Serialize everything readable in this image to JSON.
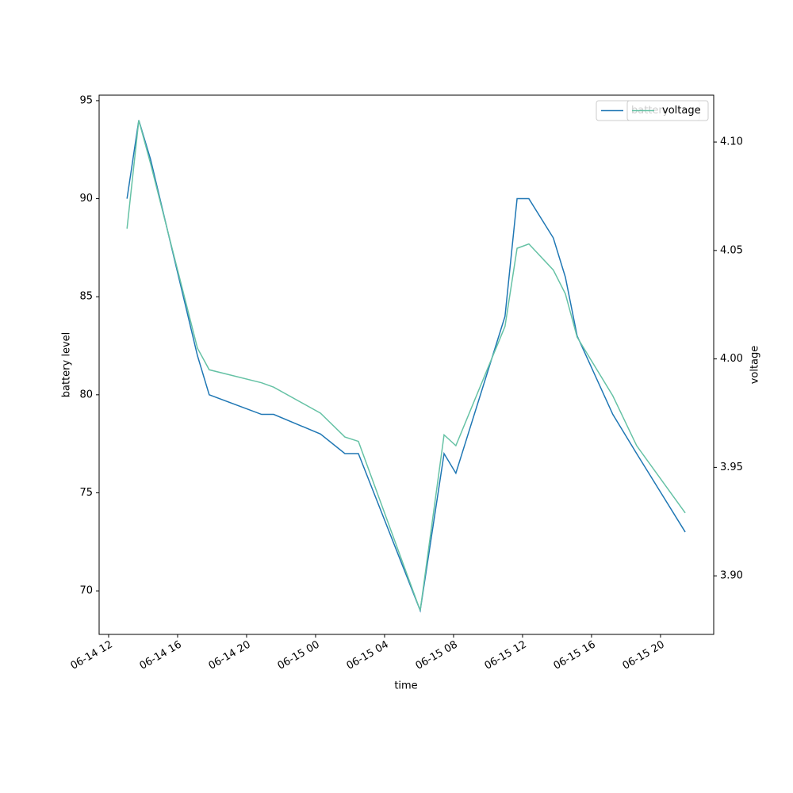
{
  "chart_data": {
    "type": "line",
    "xlabel": "time",
    "ylabel": "battery level",
    "y2label": "voltage",
    "x": [
      "06-14 13:04",
      "06-14 13:45",
      "06-14 14:26",
      "06-14 17:09",
      "06-14 17:50",
      "06-14 20:52",
      "06-14 21:34",
      "06-15 00:17",
      "06-15 01:42",
      "06-15 02:29",
      "06-15 06:04",
      "06-15 07:27",
      "06-15 08:08",
      "06-15 10:59",
      "06-15 11:41",
      "06-15 12:22",
      "06-15 13:47",
      "06-15 14:29",
      "06-15 15:10",
      "06-15 17:14",
      "06-15 18:37",
      "06-15 21:26"
    ],
    "series": [
      {
        "name": "battery",
        "color": "#1f77b4",
        "axis": "y",
        "values": [
          90,
          94,
          92,
          82,
          80,
          79,
          79,
          78,
          77,
          77,
          69,
          77,
          76,
          84,
          90,
          90,
          88,
          86,
          83,
          79,
          77,
          73
        ]
      },
      {
        "name": "voltage",
        "color": "#66c2a5",
        "axis": "y2",
        "values": [
          4.06,
          4.11,
          4.09,
          4.005,
          3.995,
          3.989,
          3.987,
          3.975,
          3.964,
          3.962,
          3.884,
          3.965,
          3.96,
          4.015,
          4.051,
          4.053,
          4.041,
          4.03,
          4.01,
          3.983,
          3.96,
          3.929
        ]
      }
    ],
    "xlim": [
      "06-14 11:27",
      "06-15 23:05"
    ],
    "xticks": [
      {
        "value": "06-14 12:00",
        "label": "06-14 12"
      },
      {
        "value": "06-14 16:00",
        "label": "06-14 16"
      },
      {
        "value": "06-14 20:00",
        "label": "06-14 20"
      },
      {
        "value": "06-15 00:00",
        "label": "06-15 00"
      },
      {
        "value": "06-15 04:00",
        "label": "06-15 04"
      },
      {
        "value": "06-15 08:00",
        "label": "06-15 08"
      },
      {
        "value": "06-15 12:00",
        "label": "06-15 12"
      },
      {
        "value": "06-15 16:00",
        "label": "06-15 16"
      },
      {
        "value": "06-15 20:00",
        "label": "06-15 20"
      }
    ],
    "ylim": [
      67.78,
      95.28
    ],
    "yticks": [
      70,
      75,
      80,
      85,
      90,
      95
    ],
    "y2lim": [
      3.873,
      4.1216
    ],
    "y2ticks": [
      {
        "value": 3.9,
        "label": "3.90"
      },
      {
        "value": 3.95,
        "label": "3.95"
      },
      {
        "value": 4.0,
        "label": "4.00"
      },
      {
        "value": 4.05,
        "label": "4.05"
      },
      {
        "value": 4.1,
        "label": "4.10"
      }
    ],
    "legend": "upper right"
  }
}
